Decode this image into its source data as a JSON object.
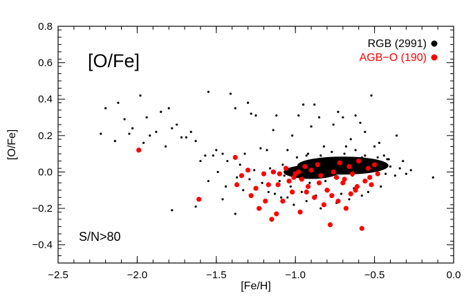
{
  "chart_data": {
    "type": "scatter",
    "title": "",
    "xlabel": "[Fe/H]",
    "ylabel": "[O/Fe]",
    "xlim": [
      -2.5,
      0.0
    ],
    "ylim": [
      -0.5,
      0.8
    ],
    "grid": false,
    "legend_position": "top-right",
    "x_ticks": [
      -2.5,
      -2.0,
      -1.5,
      -1.0,
      -0.5,
      0.0
    ],
    "x_tick_labels": [
      "−2.5",
      "−2.0",
      "−1.5",
      "−1.0",
      "−0.5",
      "0.0"
    ],
    "y_ticks": [
      -0.4,
      -0.2,
      0.0,
      0.2,
      0.4,
      0.6,
      0.8
    ],
    "y_tick_labels": [
      "−0.4",
      "−0.2",
      "0.0",
      "0.2",
      "0.4",
      "0.6",
      "0.8"
    ],
    "annotations": {
      "panel_label": "[O/Fe]",
      "sn_label": "S/N>80"
    },
    "series": [
      {
        "name": "RGB (2991)",
        "color": "#000000",
        "marker": "small-dot",
        "points": [
          [
            -2.23,
            0.21
          ],
          [
            -2.2,
            0.35
          ],
          [
            -2.14,
            0.17
          ],
          [
            -2.12,
            0.38
          ],
          [
            -2.08,
            0.29
          ],
          [
            -2.05,
            0.21
          ],
          [
            -2.03,
            0.24
          ],
          [
            -1.98,
            0.42
          ],
          [
            -1.96,
            0.16
          ],
          [
            -1.94,
            0.3
          ],
          [
            -1.92,
            0.2
          ],
          [
            -1.88,
            0.22
          ],
          [
            -1.85,
            0.33
          ],
          [
            -1.82,
            0.14
          ],
          [
            -1.8,
            0.35
          ],
          [
            -1.78,
            0.24
          ],
          [
            -1.75,
            0.26
          ],
          [
            -1.72,
            0.19
          ],
          [
            -1.69,
            0.19
          ],
          [
            -1.66,
            0.22
          ],
          [
            -1.63,
            0.17
          ],
          [
            -1.6,
            0.06
          ],
          [
            -1.57,
            0.09
          ],
          [
            -1.55,
            0.44
          ],
          [
            -1.52,
            0.09
          ],
          [
            -1.5,
            0.12
          ],
          [
            -1.46,
            0.1
          ],
          [
            -1.43,
            0.06
          ],
          [
            -1.41,
            0.43
          ],
          [
            -1.38,
            0.35
          ],
          [
            -1.35,
            0.04
          ],
          [
            -1.32,
            0.1
          ],
          [
            -1.3,
            0.38
          ],
          [
            -1.28,
            0.32
          ],
          [
            -1.25,
            0.31
          ],
          [
            -1.22,
            0.13
          ],
          [
            -1.18,
            0.12
          ],
          [
            -1.16,
            0.02
          ],
          [
            -1.14,
            0.23
          ],
          [
            -1.12,
            0.31
          ],
          [
            -1.08,
            0.04
          ],
          [
            -1.05,
            0.12
          ],
          [
            -1.02,
            0.2
          ],
          [
            -0.98,
            0.31
          ],
          [
            -0.95,
            0.37
          ],
          [
            -0.93,
            0.09
          ],
          [
            -0.9,
            0.25
          ],
          [
            -0.88,
            0.37
          ],
          [
            -0.85,
            0.3
          ],
          [
            -0.82,
            0.14
          ],
          [
            -0.79,
            0.05
          ],
          [
            -0.76,
            0.26
          ],
          [
            -0.73,
            0.33
          ],
          [
            -0.7,
            0.3
          ],
          [
            -0.68,
            0.14
          ],
          [
            -0.65,
            0.18
          ],
          [
            -0.62,
            0.31
          ],
          [
            -0.59,
            0.27
          ],
          [
            -0.56,
            0.22
          ],
          [
            -0.52,
            0.42
          ],
          [
            -0.5,
            0.14
          ],
          [
            -0.47,
            0.16
          ],
          [
            -0.44,
            0.09
          ],
          [
            -0.41,
            0.07
          ],
          [
            -0.36,
            0.2
          ],
          [
            -0.32,
            0.06
          ],
          [
            -0.27,
            0.01
          ],
          [
            -0.13,
            -0.03
          ],
          [
            -1.55,
            -0.05
          ],
          [
            -1.49,
            0.0
          ],
          [
            -1.44,
            -0.08
          ],
          [
            -1.37,
            -0.03
          ],
          [
            -1.33,
            -0.1
          ],
          [
            -1.29,
            -0.04
          ],
          [
            -1.26,
            0.01
          ],
          [
            -1.21,
            -0.06
          ],
          [
            -1.17,
            -0.11
          ],
          [
            -1.13,
            0.0
          ],
          [
            -1.1,
            -0.05
          ],
          [
            -1.07,
            -0.02
          ],
          [
            -1.03,
            -0.08
          ],
          [
            -1.0,
            0.02
          ],
          [
            -0.97,
            -0.04
          ],
          [
            -0.94,
            0.01
          ],
          [
            -0.91,
            -0.06
          ],
          [
            -0.88,
            0.03
          ],
          [
            -0.86,
            -0.02
          ],
          [
            -0.83,
            0.04
          ],
          [
            -0.81,
            -0.05
          ],
          [
            -0.78,
            0.02
          ],
          [
            -0.75,
            -0.03
          ],
          [
            -0.72,
            0.05
          ],
          [
            -0.7,
            0.0
          ],
          [
            -0.67,
            0.06
          ],
          [
            -0.64,
            -0.02
          ],
          [
            -0.61,
            0.04
          ],
          [
            -0.58,
            0.08
          ],
          [
            -0.55,
            0.03
          ],
          [
            -0.52,
            0.06
          ],
          [
            -0.49,
            0.01
          ],
          [
            -0.46,
            0.04
          ],
          [
            -0.43,
            -0.01
          ],
          [
            -0.4,
            0.03
          ],
          [
            -0.37,
            -0.02
          ],
          [
            -0.34,
            0.02
          ],
          [
            -0.3,
            -0.01
          ],
          [
            -0.99,
            0.08
          ],
          [
            -0.92,
            0.1
          ],
          [
            -0.84,
            0.09
          ],
          [
            -0.77,
            0.11
          ],
          [
            -0.69,
            0.1
          ],
          [
            -0.62,
            0.12
          ],
          [
            -0.56,
            0.09
          ],
          [
            -0.48,
            0.08
          ],
          [
            -0.42,
            0.07
          ],
          [
            -1.13,
            -0.12
          ],
          [
            -1.05,
            -0.14
          ],
          [
            -0.96,
            -0.11
          ],
          [
            -0.87,
            -0.13
          ],
          [
            -0.79,
            -0.1
          ],
          [
            -0.71,
            -0.12
          ],
          [
            -0.63,
            -0.09
          ],
          [
            -0.54,
            -0.11
          ],
          [
            -0.46,
            -0.08
          ],
          [
            -1.78,
            -0.21
          ],
          [
            -1.63,
            -0.19
          ],
          [
            -1.46,
            -0.15
          ],
          [
            -1.38,
            -0.23
          ],
          [
            -1.22,
            -0.2
          ],
          [
            -1.09,
            -0.14
          ],
          [
            -1.01,
            -0.18
          ],
          [
            -0.93,
            -0.16
          ],
          [
            -0.84,
            -0.2
          ],
          [
            -0.74,
            -0.17
          ],
          [
            -0.66,
            -0.15
          ],
          [
            -0.58,
            -0.13
          ]
        ]
      },
      {
        "name": "AGB−O (190)",
        "color": "#ff0000",
        "marker": "large-dot",
        "points": [
          [
            -1.99,
            0.12
          ],
          [
            -1.61,
            -0.15
          ],
          [
            -1.38,
            0.08
          ],
          [
            -1.37,
            -0.07
          ],
          [
            -1.34,
            -0.02
          ],
          [
            -1.3,
            0.01
          ],
          [
            -1.28,
            -0.13
          ],
          [
            -1.23,
            -0.2
          ],
          [
            -1.2,
            -0.01
          ],
          [
            -1.17,
            -0.07
          ],
          [
            -1.15,
            -0.26
          ],
          [
            -1.14,
            0.0
          ],
          [
            -1.12,
            -0.23
          ],
          [
            -1.1,
            -0.01
          ],
          [
            -1.08,
            -0.16
          ],
          [
            -1.06,
            0.02
          ],
          [
            -1.04,
            -0.05
          ],
          [
            -1.02,
            -0.11
          ],
          [
            -1.0,
            -0.01
          ],
          [
            -0.98,
            0.0
          ],
          [
            -0.96,
            -0.04
          ],
          [
            -0.94,
            0.03
          ],
          [
            -0.92,
            -0.08
          ],
          [
            -0.9,
            0.01
          ],
          [
            -0.88,
            -0.14
          ],
          [
            -0.86,
            0.04
          ],
          [
            -0.84,
            -0.02
          ],
          [
            -0.82,
            -0.18
          ],
          [
            -0.8,
            -0.1
          ],
          [
            -0.78,
            -0.29
          ],
          [
            -0.76,
            0.0
          ],
          [
            -0.74,
            -0.03
          ],
          [
            -0.72,
            0.05
          ],
          [
            -0.7,
            -0.06
          ],
          [
            -0.68,
            -0.2
          ],
          [
            -0.66,
            0.03
          ],
          [
            -0.64,
            -0.01
          ],
          [
            -0.62,
            -0.1
          ],
          [
            -0.6,
            0.06
          ],
          [
            -0.58,
            -0.31
          ],
          [
            -0.56,
            -0.05
          ],
          [
            -0.54,
            0.02
          ],
          [
            -0.52,
            -0.07
          ],
          [
            -0.5,
            0.04
          ],
          [
            -0.48,
            -0.01
          ],
          [
            -1.25,
            -0.09
          ],
          [
            -1.19,
            -0.16
          ],
          [
            -1.11,
            -0.07
          ],
          [
            -1.01,
            -0.03
          ],
          [
            -0.93,
            -0.11
          ],
          [
            -0.85,
            -0.06
          ],
          [
            -0.77,
            -0.13
          ],
          [
            -0.69,
            -0.04
          ],
          [
            -0.61,
            -0.08
          ],
          [
            -0.53,
            -0.03
          ],
          [
            -0.97,
            -0.22
          ],
          [
            -0.73,
            -0.16
          ],
          [
            -0.65,
            -0.12
          ]
        ]
      }
    ]
  }
}
